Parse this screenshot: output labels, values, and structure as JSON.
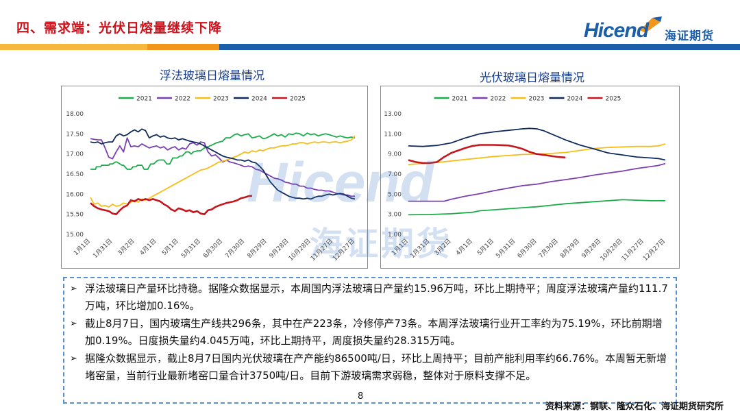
{
  "header": {
    "title": "四、需求端：光伏日熔量继续下降",
    "logo_text": "Hicend",
    "logo_cn": "海证期货"
  },
  "watermark": {
    "text": "Hicend",
    "cn": "海证期货"
  },
  "colors": {
    "2021": "#1aab4b",
    "2022": "#7a3fb0",
    "2023": "#f7bd16",
    "2024": "#0f2a5c",
    "2025": "#c4161c"
  },
  "chart_data": [
    {
      "type": "line",
      "title": "浮法玻璃日熔量情况",
      "x_ticks": [
        "1月1日",
        "1月31日",
        "3月2日",
        "4月1日",
        "5月1日",
        "5月31日",
        "6月30日",
        "7月30日",
        "8月29日",
        "9月28日",
        "10月28日",
        "11月27日",
        "12月27日"
      ],
      "ylim": [
        15.0,
        18.0
      ],
      "y_ticks": [
        "15.00",
        "15.50",
        "16.00",
        "16.50",
        "17.00",
        "17.50",
        "18.00"
      ],
      "legend": [
        "2021",
        "2022",
        "2023",
        "2024",
        "2025"
      ],
      "legend_position": "top",
      "series": [
        {
          "name": "2021",
          "x": [
            0,
            7,
            8,
            14,
            15,
            25,
            26,
            30,
            34,
            36,
            43,
            45,
            50,
            55,
            58,
            62,
            64,
            70,
            73,
            78,
            82,
            86,
            90,
            93,
            100,
            104,
            108,
            112,
            118,
            122,
            125,
            130,
            134,
            137,
            140,
            146,
            150,
            155,
            160,
            165,
            172,
            176,
            180,
            184,
            190,
            196,
            200,
            205,
            210,
            215,
            220,
            225,
            230,
            235,
            240,
            245,
            250,
            255,
            260,
            265,
            270,
            275,
            280,
            285,
            290,
            295,
            300,
            305,
            310,
            315,
            320,
            325,
            330,
            335,
            340,
            345,
            350,
            355,
            360
          ],
          "y": [
            16.62,
            16.62,
            16.68,
            16.68,
            16.72,
            16.72,
            16.75,
            16.75,
            16.8,
            16.8,
            16.72,
            16.72,
            16.62,
            16.62,
            16.68,
            16.68,
            16.72,
            16.72,
            16.62,
            16.62,
            16.75,
            16.75,
            16.82,
            16.85,
            16.85,
            16.75,
            16.75,
            16.9,
            16.9,
            16.95,
            16.95,
            17.05,
            17.05,
            17.0,
            17.05,
            17.08,
            17.08,
            17.15,
            17.18,
            17.22,
            17.28,
            17.3,
            17.32,
            17.4,
            17.4,
            17.48,
            17.5,
            17.45,
            17.48,
            17.5,
            17.4,
            17.42,
            17.45,
            17.38,
            17.4,
            17.45,
            17.5,
            17.45,
            17.48,
            17.42,
            17.5,
            17.48,
            17.52,
            17.5,
            17.45,
            17.52,
            17.48,
            17.5,
            17.45,
            17.48,
            17.5,
            17.48,
            17.45,
            17.42,
            17.45,
            17.42,
            17.4,
            17.42,
            17.4
          ]
        },
        {
          "name": "2022",
          "x": [
            0,
            10,
            15,
            20,
            25,
            30,
            35,
            40,
            45,
            50,
            55,
            60,
            65,
            70,
            75,
            80,
            85,
            90,
            95,
            100,
            105,
            110,
            115,
            120,
            125,
            130,
            135,
            140,
            145,
            150,
            155,
            160,
            165,
            170,
            175,
            180,
            185,
            190,
            195,
            200,
            205,
            210,
            215,
            220,
            225,
            230,
            235,
            240,
            245,
            250,
            255,
            260,
            265,
            270,
            275,
            280,
            285,
            290,
            295,
            300,
            305,
            310,
            315,
            320,
            325,
            330,
            335,
            340,
            345,
            350,
            355,
            360
          ],
          "y": [
            17.38,
            17.35,
            17.35,
            17.15,
            16.92,
            16.88,
            17.05,
            17.2,
            17.05,
            17.4,
            17.18,
            17.2,
            17.18,
            17.25,
            17.2,
            17.15,
            17.18,
            17.2,
            17.15,
            17.18,
            17.1,
            17.15,
            17.18,
            17.1,
            17.15,
            17.12,
            17.25,
            17.28,
            17.22,
            17.3,
            17.28,
            17.05,
            16.95,
            16.98,
            16.9,
            16.8,
            16.85,
            16.8,
            16.78,
            16.75,
            16.72,
            16.68,
            16.7,
            16.68,
            16.62,
            16.6,
            16.55,
            16.5,
            16.45,
            16.4,
            16.38,
            16.35,
            16.3,
            16.28,
            16.25,
            16.25,
            16.2,
            16.2,
            16.15,
            16.15,
            16.12,
            16.1,
            16.1,
            16.08,
            16.08,
            16.05,
            16.02,
            16.0,
            15.98,
            15.98,
            15.95,
            15.95
          ]
        },
        {
          "name": "2023",
          "x": [
            0,
            5,
            10,
            15,
            20,
            25,
            30,
            35,
            40,
            45,
            50,
            55,
            60,
            65,
            70,
            75,
            80,
            85,
            90,
            95,
            100,
            105,
            110,
            115,
            120,
            125,
            130,
            135,
            140,
            145,
            150,
            155,
            160,
            165,
            170,
            175,
            180,
            185,
            190,
            195,
            200,
            205,
            210,
            215,
            220,
            225,
            230,
            235,
            240,
            245,
            250,
            255,
            260,
            265,
            270,
            275,
            280,
            285,
            290,
            295,
            300,
            305,
            310,
            315,
            320,
            325,
            330,
            335,
            340,
            345,
            350,
            355,
            360
          ],
          "y": [
            15.92,
            15.75,
            15.78,
            15.7,
            15.72,
            15.68,
            15.75,
            15.7,
            15.72,
            15.78,
            15.75,
            15.8,
            15.85,
            15.8,
            15.88,
            15.85,
            15.9,
            15.95,
            16.0,
            16.05,
            16.1,
            16.15,
            16.2,
            16.25,
            16.3,
            16.35,
            16.4,
            16.45,
            16.5,
            16.55,
            16.6,
            16.62,
            16.65,
            16.7,
            16.75,
            16.8,
            16.82,
            16.85,
            16.88,
            16.92,
            16.95,
            17.0,
            17.05,
            17.02,
            17.08,
            17.05,
            17.1,
            17.08,
            17.12,
            17.15,
            17.15,
            17.18,
            17.2,
            17.2,
            17.22,
            17.25,
            17.25,
            17.28,
            17.28,
            17.25,
            17.28,
            17.3,
            17.28,
            17.3,
            17.3,
            17.28,
            17.3,
            17.3,
            17.28,
            17.3,
            17.32,
            17.35,
            17.45
          ]
        },
        {
          "name": "2024",
          "x": [
            0,
            5,
            10,
            15,
            20,
            25,
            30,
            35,
            40,
            45,
            50,
            55,
            60,
            65,
            70,
            75,
            80,
            85,
            90,
            95,
            100,
            105,
            110,
            115,
            120,
            125,
            130,
            135,
            140,
            145,
            150,
            155,
            160,
            165,
            170,
            175,
            180,
            185,
            190,
            195,
            200,
            205,
            210,
            215,
            220,
            225,
            230,
            235,
            240,
            245,
            250,
            255,
            260,
            265,
            270,
            275,
            280,
            285,
            290,
            295,
            300,
            305,
            310,
            315,
            320,
            325,
            330,
            335,
            340,
            345,
            350,
            355,
            360
          ],
          "y": [
            17.3,
            17.28,
            17.3,
            17.25,
            17.28,
            17.3,
            17.3,
            17.45,
            17.5,
            17.45,
            17.48,
            17.55,
            17.6,
            17.55,
            17.62,
            17.58,
            17.4,
            17.45,
            17.48,
            17.42,
            17.45,
            17.4,
            17.38,
            17.4,
            17.35,
            17.38,
            17.35,
            17.32,
            17.3,
            17.28,
            17.25,
            17.2,
            17.15,
            17.1,
            17.05,
            17.0,
            16.95,
            16.92,
            16.9,
            16.88,
            16.85,
            16.85,
            16.82,
            16.85,
            16.8,
            16.78,
            16.7,
            16.6,
            16.45,
            16.3,
            16.2,
            16.1,
            16.05,
            16.0,
            15.95,
            15.92,
            15.9,
            15.9,
            15.88,
            15.9,
            15.88,
            15.92,
            15.95,
            15.95,
            15.98,
            16.0,
            15.98,
            16.0,
            16.02,
            16.0,
            15.95,
            15.9,
            15.88
          ]
        },
        {
          "name": "2025",
          "x": [
            0,
            5,
            10,
            15,
            20,
            25,
            30,
            35,
            40,
            45,
            50,
            55,
            60,
            65,
            70,
            75,
            80,
            85,
            90,
            95,
            100,
            105,
            110,
            115,
            120,
            125,
            130,
            135,
            140,
            145,
            150,
            155,
            160,
            165,
            170,
            175,
            180,
            185,
            190,
            195,
            200,
            205,
            210,
            215,
            220
          ],
          "y": [
            15.78,
            15.7,
            15.65,
            15.62,
            15.6,
            15.58,
            15.52,
            15.5,
            15.6,
            15.68,
            15.72,
            15.85,
            15.82,
            15.88,
            15.85,
            15.88,
            15.85,
            15.88,
            15.85,
            15.82,
            15.75,
            15.7,
            15.62,
            15.58,
            15.65,
            15.62,
            15.58,
            15.6,
            15.55,
            15.58,
            15.52,
            15.5,
            15.6,
            15.62,
            15.68,
            15.72,
            15.75,
            15.78,
            15.8,
            15.82,
            15.85,
            15.9,
            15.92,
            15.95,
            15.96
          ]
        }
      ]
    },
    {
      "type": "line",
      "title": "光伏玻璃日熔量情况",
      "x_ticks": [
        "1月1日",
        "1月31日",
        "3月2日",
        "4月1日",
        "5月1日",
        "5月31日",
        "6月30日",
        "7月30日",
        "8月29日",
        "9月28日",
        "10月28日",
        "11月27日",
        "12月27日"
      ],
      "ylim": [
        1.0,
        13.0
      ],
      "y_ticks": [
        "1.00",
        "3.00",
        "5.00",
        "7.00",
        "9.00",
        "11.00",
        "13.00"
      ],
      "legend": [
        "2021",
        "2022",
        "2023",
        "2024",
        "2025"
      ],
      "legend_position": "top",
      "series": [
        {
          "name": "2021",
          "x": [
            0,
            30,
            60,
            90,
            100,
            120,
            140,
            160,
            180,
            200,
            220,
            240,
            260,
            280,
            300,
            320,
            340,
            360
          ],
          "y": [
            2.95,
            2.98,
            3.05,
            3.2,
            3.35,
            3.45,
            3.55,
            3.65,
            3.75,
            3.9,
            4.05,
            4.15,
            4.25,
            4.35,
            4.45,
            4.4,
            4.35,
            4.35
          ]
        },
        {
          "name": "2022",
          "x": [
            0,
            30,
            50,
            60,
            80,
            100,
            120,
            140,
            160,
            180,
            200,
            220,
            240,
            260,
            280,
            300,
            320,
            340,
            350,
            360
          ],
          "y": [
            4.3,
            4.3,
            4.3,
            4.5,
            4.8,
            5.05,
            5.35,
            5.6,
            5.85,
            6.0,
            6.25,
            6.45,
            6.65,
            6.9,
            7.1,
            7.3,
            7.55,
            7.75,
            7.85,
            8.05
          ]
        },
        {
          "name": "2023",
          "x": [
            0,
            20,
            40,
            60,
            80,
            100,
            120,
            140,
            160,
            180,
            200,
            220,
            240,
            260,
            280,
            300,
            320,
            340,
            350,
            360
          ],
          "y": [
            7.95,
            8.05,
            8.15,
            8.3,
            8.45,
            8.6,
            8.75,
            8.85,
            8.95,
            8.98,
            9.05,
            9.15,
            9.35,
            9.55,
            9.65,
            9.7,
            9.75,
            9.75,
            9.8,
            10.0
          ]
        },
        {
          "name": "2024",
          "x": [
            0,
            20,
            40,
            60,
            80,
            100,
            120,
            140,
            160,
            170,
            180,
            190,
            200,
            220,
            240,
            260,
            280,
            300,
            320,
            340,
            350,
            360
          ],
          "y": [
            9.8,
            9.75,
            9.85,
            10.1,
            10.6,
            11.0,
            11.2,
            11.35,
            11.5,
            11.55,
            11.5,
            11.3,
            11.0,
            10.4,
            9.9,
            9.5,
            9.1,
            8.9,
            8.7,
            8.6,
            8.55,
            8.4
          ]
        },
        {
          "name": "2025",
          "x": [
            0,
            10,
            20,
            30,
            40,
            50,
            60,
            70,
            80,
            90,
            100,
            110,
            120,
            130,
            140,
            150,
            160,
            170,
            180,
            190,
            200,
            210,
            220
          ],
          "y": [
            8.4,
            8.2,
            8.1,
            8.1,
            8.2,
            8.7,
            9.1,
            9.35,
            9.6,
            9.8,
            9.9,
            9.9,
            9.9,
            9.88,
            9.85,
            9.7,
            9.5,
            9.2,
            9.0,
            8.9,
            8.8,
            8.7,
            8.65
          ]
        }
      ]
    }
  ],
  "notes": [
    "浮法玻璃日产量环比持稳。据隆众数据显示，本周国内浮法玻璃日产量约15.96万吨，环比上期持平；周度浮法玻璃产量约111.7万吨，环比增加0.16%。",
    "截止8月7日，国内玻璃生产线共296条，其中在产223条，冷修停产73条。本周浮法玻璃行业开工率约为75.19%，环比前期增加0.19%。日度损失量约4.045万吨，环比上期持平，周度损失量约28.315万吨。",
    "据隆众数据显示，截止8月7日国内光伏玻璃在产产能约86500吨/日，环比上周持平；目前产能利用率约66.76%。本周暂无新增堵窑量，当前行业最新堵窑口量合计3750吨/日。目前下游玻璃需求弱稳，整体对于原料支撑不足。"
  ],
  "footer": {
    "page_number": "8",
    "source": "资料来源：钢联、隆众石化、海证期货研究所"
  }
}
